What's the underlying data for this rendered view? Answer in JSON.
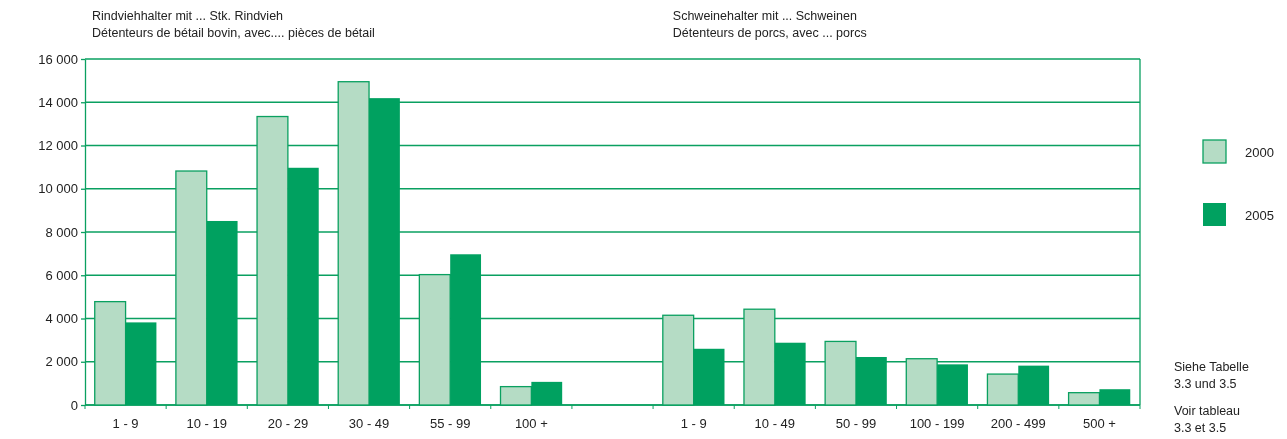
{
  "chart_data": {
    "type": "bar",
    "categories": [
      "1 - 9",
      "10 - 19",
      "20 - 29",
      "30 - 49",
      "55 - 99",
      "100 +",
      null,
      "1 - 9",
      "10 - 49",
      "50 - 99",
      "100 - 199",
      "200 - 499",
      "500 +"
    ],
    "series": [
      {
        "name": "2000",
        "color": "#b5dcc5",
        "values": [
          4780,
          10820,
          13340,
          14950,
          6030,
          850,
          null,
          4150,
          4430,
          2940,
          2140,
          1430,
          570
        ]
      },
      {
        "name": "2005",
        "color": "#00a160",
        "values": [
          3820,
          8510,
          10970,
          14190,
          6970,
          1070,
          null,
          2600,
          2880,
          2220,
          1880,
          1820,
          730
        ]
      }
    ],
    "ylim": [
      0,
      16000
    ],
    "yticks": [
      {
        "value": 0,
        "label": "0"
      },
      {
        "value": 2000,
        "label": "2 000"
      },
      {
        "value": 4000,
        "label": "4 000"
      },
      {
        "value": 6000,
        "label": "6 000"
      },
      {
        "value": 8000,
        "label": "8 000"
      },
      {
        "value": 10000,
        "label": "10 000"
      },
      {
        "value": 12000,
        "label": "12 000"
      },
      {
        "value": 14000,
        "label": "14 000"
      },
      {
        "value": 16000,
        "label": "16 000"
      }
    ],
    "grid": "y",
    "legend": "right",
    "annotations": [
      "Rindviehhalter mit ... Stk. Rindvieh\nDétenteurs de bétail bovin, avec.... pièces de bétail",
      "Schweinehalter mit ... Schweinen\nDétenteurs de porcs, avec ... porcs",
      "Siehe Tabelle\n3.3 und 3.5",
      "Voir tableau\n3.3 et 3.5"
    ]
  }
}
